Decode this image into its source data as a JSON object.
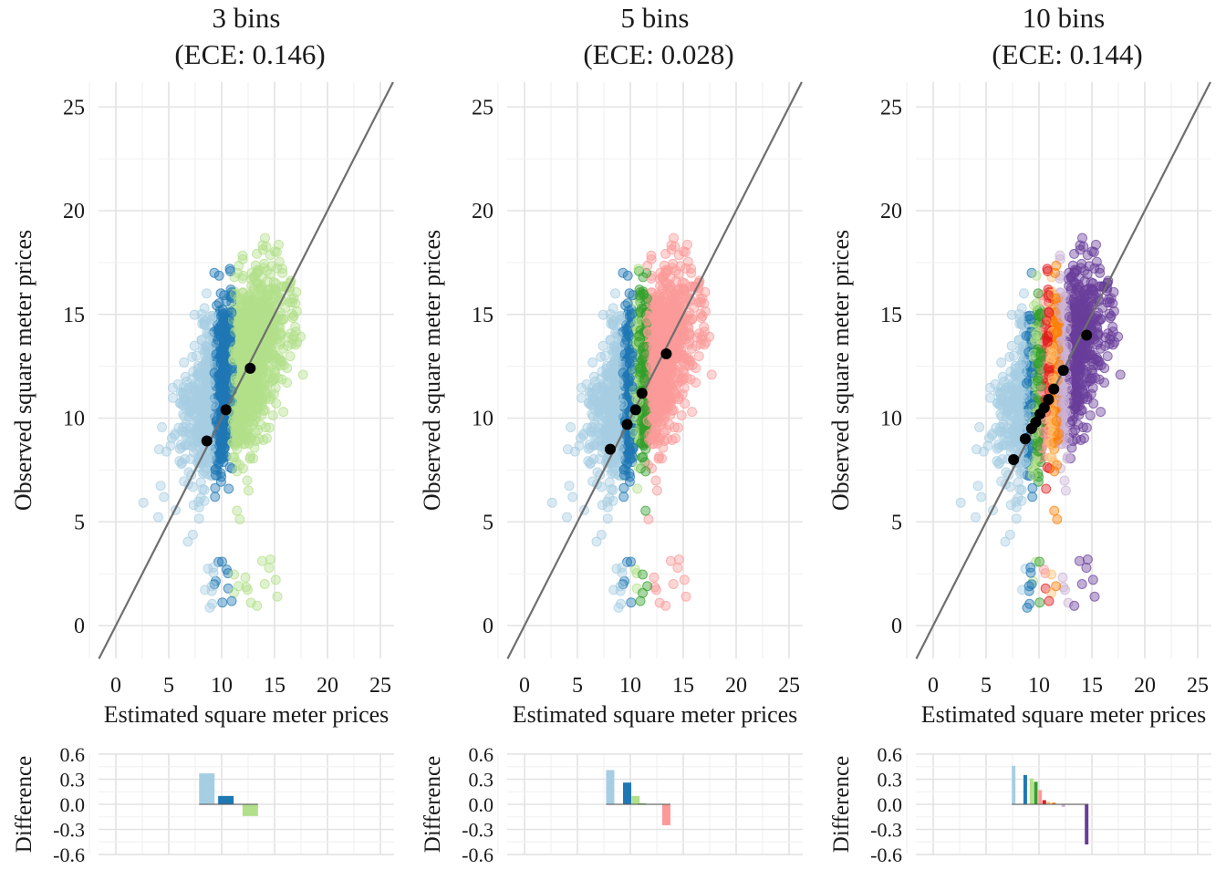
{
  "chart_data": [
    {
      "type": "scatter",
      "title_line1": "3 bins",
      "title_line2": "(ECE: 0.146)",
      "xlabel": "Estimated square meter prices",
      "ylabel": "Observed square meter prices",
      "xlim": [
        -1.5,
        26.5
      ],
      "ylim": [
        -1.5,
        25.8
      ],
      "xticks": [
        "0",
        "5",
        "10",
        "15",
        "20",
        "25"
      ],
      "yticks": [
        "0",
        "5",
        "10",
        "15",
        "20",
        "25"
      ],
      "reference_line": "y = x",
      "bins": [
        {
          "lo": 2.5,
          "hi": 9.3,
          "color": "#a6cee3"
        },
        {
          "lo": 9.3,
          "hi": 11.0,
          "color": "#1f78b4"
        },
        {
          "lo": 11.0,
          "hi": 20.0,
          "color": "#b2df8a"
        }
      ],
      "bin_means": [
        {
          "x": 8.6,
          "y": 8.9
        },
        {
          "x": 10.4,
          "y": 10.4
        },
        {
          "x": 12.7,
          "y": 12.4
        }
      ],
      "difference": {
        "ylabel": "Difference",
        "ylim": [
          -0.6,
          0.6
        ],
        "yticks": [
          "0.6",
          "0.3",
          "0.0",
          "-0.3",
          "-0.6"
        ],
        "bars": [
          {
            "x": 8.6,
            "value": 0.37,
            "color": "#a6cee3"
          },
          {
            "x": 10.4,
            "value": 0.1,
            "color": "#1f78b4"
          },
          {
            "x": 12.7,
            "value": -0.14,
            "color": "#b2df8a"
          }
        ]
      }
    },
    {
      "type": "scatter",
      "title_line1": "5 bins",
      "title_line2": "(ECE: 0.028)",
      "xlabel": "Estimated square meter prices",
      "ylabel": "Observed square meter prices",
      "xlim": [
        -1.5,
        26.5
      ],
      "ylim": [
        -1.5,
        25.8
      ],
      "xticks": [
        "0",
        "5",
        "10",
        "15",
        "20",
        "25"
      ],
      "yticks": [
        "0",
        "5",
        "10",
        "15",
        "20",
        "25"
      ],
      "reference_line": "y = x",
      "bins": [
        {
          "lo": 2.5,
          "hi": 9.3,
          "color": "#a6cee3"
        },
        {
          "lo": 9.3,
          "hi": 10.3,
          "color": "#1f78b4"
        },
        {
          "lo": 10.3,
          "hi": 10.8,
          "color": "#b2df8a"
        },
        {
          "lo": 10.8,
          "hi": 11.6,
          "color": "#33a02c"
        },
        {
          "lo": 11.6,
          "hi": 20.0,
          "color": "#fb9a99"
        }
      ],
      "bin_means": [
        {
          "x": 8.1,
          "y": 8.5
        },
        {
          "x": 9.7,
          "y": 9.7
        },
        {
          "x": 10.5,
          "y": 10.4
        },
        {
          "x": 11.1,
          "y": 11.2
        },
        {
          "x": 13.4,
          "y": 13.1
        }
      ],
      "difference": {
        "ylabel": "Difference",
        "ylim": [
          -0.6,
          0.6
        ],
        "yticks": [
          "0.6",
          "0.3",
          "0.0",
          "-0.3",
          "-0.6"
        ],
        "bars": [
          {
            "x": 8.1,
            "value": 0.41,
            "color": "#a6cee3"
          },
          {
            "x": 9.7,
            "value": 0.26,
            "color": "#1f78b4"
          },
          {
            "x": 10.5,
            "value": 0.1,
            "color": "#b2df8a"
          },
          {
            "x": 11.1,
            "value": 0.01,
            "color": "#33a02c"
          },
          {
            "x": 13.4,
            "value": -0.25,
            "color": "#fb9a99"
          }
        ]
      }
    },
    {
      "type": "scatter",
      "title_line1": "10 bins",
      "title_line2": "(ECE: 0.144)",
      "xlabel": "Estimated square meter prices",
      "ylabel": "Observed square meter prices",
      "xlim": [
        -1.5,
        26.5
      ],
      "ylim": [
        -1.5,
        25.8
      ],
      "xticks": [
        "0",
        "5",
        "10",
        "15",
        "20",
        "25"
      ],
      "yticks": [
        "0",
        "5",
        "10",
        "15",
        "20",
        "25"
      ],
      "reference_line": "y = x",
      "bins": [
        {
          "lo": 2.5,
          "hi": 8.8,
          "color": "#a6cee3"
        },
        {
          "lo": 8.8,
          "hi": 9.4,
          "color": "#1f78b4"
        },
        {
          "lo": 9.4,
          "hi": 9.8,
          "color": "#b2df8a"
        },
        {
          "lo": 9.8,
          "hi": 10.2,
          "color": "#33a02c"
        },
        {
          "lo": 10.2,
          "hi": 10.6,
          "color": "#fb9a99"
        },
        {
          "lo": 10.6,
          "hi": 11.0,
          "color": "#e31a1c"
        },
        {
          "lo": 11.0,
          "hi": 11.4,
          "color": "#fdbf6f"
        },
        {
          "lo": 11.4,
          "hi": 11.9,
          "color": "#ff7f00"
        },
        {
          "lo": 11.9,
          "hi": 12.8,
          "color": "#cab2d6"
        },
        {
          "lo": 12.8,
          "hi": 20.0,
          "color": "#6a3d9a"
        }
      ],
      "bin_means": [
        {
          "x": 7.6,
          "y": 8.0
        },
        {
          "x": 8.7,
          "y": 9.0
        },
        {
          "x": 9.3,
          "y": 9.5
        },
        {
          "x": 9.7,
          "y": 9.8
        },
        {
          "x": 10.1,
          "y": 10.2
        },
        {
          "x": 10.5,
          "y": 10.5
        },
        {
          "x": 10.9,
          "y": 10.9
        },
        {
          "x": 11.4,
          "y": 11.4
        },
        {
          "x": 12.3,
          "y": 12.3
        },
        {
          "x": 14.5,
          "y": 14.0
        }
      ],
      "difference": {
        "ylabel": "Difference",
        "ylim": [
          -0.6,
          0.6
        ],
        "yticks": [
          "0.6",
          "0.3",
          "0.0",
          "-0.3",
          "-0.6"
        ],
        "bars": [
          {
            "x": 7.6,
            "value": 0.46,
            "color": "#a6cee3"
          },
          {
            "x": 8.7,
            "value": 0.35,
            "color": "#1f78b4"
          },
          {
            "x": 9.3,
            "value": 0.31,
            "color": "#b2df8a"
          },
          {
            "x": 9.7,
            "value": 0.27,
            "color": "#33a02c"
          },
          {
            "x": 10.1,
            "value": 0.17,
            "color": "#fb9a99"
          },
          {
            "x": 10.5,
            "value": 0.05,
            "color": "#e31a1c"
          },
          {
            "x": 10.9,
            "value": 0.03,
            "color": "#fdbf6f"
          },
          {
            "x": 11.4,
            "value": 0.02,
            "color": "#ff7f00"
          },
          {
            "x": 12.3,
            "value": -0.03,
            "color": "#cab2d6"
          },
          {
            "x": 14.5,
            "value": -0.48,
            "color": "#6a3d9a"
          }
        ]
      }
    }
  ]
}
